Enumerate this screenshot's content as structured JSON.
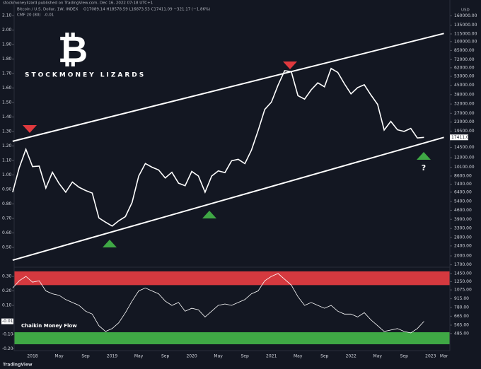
{
  "chart_data": {
    "type": "line",
    "byline": "stockmoneylizard published on TradingView.com, Dec 16, 2022 07:18 UTC+1",
    "ohlc_text": "O17089.14 H18578.59 L16873.53 C17411.09 −321.17 (−1.86%)",
    "brand": "STOCKMONEY LIZARDS",
    "logo": "₿",
    "currency": "USD",
    "annotation": "?",
    "footer": "TradingView",
    "categories": [
      null,
      null,
      null,
      "2018",
      null,
      null,
      null,
      "May",
      null,
      null,
      null,
      "Sep",
      null,
      null,
      null,
      "2019",
      null,
      null,
      null,
      "May",
      null,
      null,
      null,
      "Sep",
      null,
      null,
      null,
      "2020",
      null,
      null,
      null,
      "May",
      null,
      null,
      null,
      "Sep",
      null,
      null,
      null,
      "2021",
      null,
      null,
      null,
      "May",
      null,
      null,
      null,
      "Sep",
      null,
      null,
      null,
      "2022",
      null,
      null,
      null,
      "May",
      null,
      null,
      null,
      "Sep",
      null,
      null,
      null,
      "2023",
      null,
      "Mar"
    ],
    "series": [
      {
        "name": "Bitcoin / U.S. Dollar, 1W, INDEX",
        "color": "#ffffff",
        "axis": "y",
        "last_value": 17411.09,
        "values": [
          6400,
          10000,
          14000,
          10200,
          10300,
          6900,
          9200,
          7500,
          6400,
          7700,
          7000,
          6600,
          6300,
          4000,
          3700,
          3450,
          3800,
          4100,
          5300,
          8600,
          10800,
          10100,
          9600,
          8300,
          9200,
          7550,
          7200,
          9350,
          8600,
          6400,
          8600,
          9450,
          9150,
          11350,
          11650,
          10780,
          13800,
          19700,
          29000,
          33100,
          45200,
          58800,
          57700,
          37300,
          35000,
          41500,
          47100,
          43800,
          61300,
          57000,
          46300,
          38500,
          43200,
          45500,
          37700,
          31800,
          19900,
          23300,
          20000,
          19400,
          20500,
          17200,
          17411,
          null,
          null,
          null
        ]
      },
      {
        "name": "Chaikin Money Flow",
        "legend": "CMF 20 (80)",
        "color": "#ffffff",
        "axis": "y2",
        "last_value": -0.01,
        "values": [
          0.22,
          0.27,
          0.3,
          0.26,
          0.27,
          0.2,
          0.18,
          0.17,
          0.14,
          0.12,
          0.1,
          0.06,
          0.04,
          -0.04,
          -0.08,
          -0.06,
          -0.02,
          0.05,
          0.13,
          0.2,
          0.22,
          0.2,
          0.18,
          0.13,
          0.1,
          0.12,
          0.06,
          0.08,
          0.07,
          0.02,
          0.06,
          0.1,
          0.11,
          0.1,
          0.12,
          0.14,
          0.18,
          0.2,
          0.27,
          0.3,
          0.32,
          0.28,
          0.24,
          0.16,
          0.1,
          0.12,
          0.1,
          0.08,
          0.1,
          0.06,
          0.04,
          0.04,
          0.02,
          0.05,
          0.0,
          -0.04,
          -0.08,
          -0.07,
          -0.06,
          -0.08,
          -0.09,
          -0.06,
          -0.01,
          null,
          null,
          null
        ]
      }
    ],
    "log_scale": true,
    "ylim": [
      355,
      197700
    ],
    "yticks": [
      {
        "value": 160000,
        "label": "160000.00"
      },
      {
        "value": 135000,
        "label": "135000.00"
      },
      {
        "value": 115000,
        "label": "115000.00"
      },
      {
        "value": 100000,
        "label": "100000.00"
      },
      {
        "value": 85000,
        "label": "85000.00"
      },
      {
        "value": 72000,
        "label": "72000.00"
      },
      {
        "value": 62000,
        "label": "62000.00"
      },
      {
        "value": 53000,
        "label": "53000.00"
      },
      {
        "value": 45000,
        "label": "45000.00"
      },
      {
        "value": 38000,
        "label": "38000.00"
      },
      {
        "value": 32000,
        "label": "32000.00"
      },
      {
        "value": 27000,
        "label": "27000.00"
      },
      {
        "value": 23000,
        "label": "23000.00"
      },
      {
        "value": 19500,
        "label": "19500.00"
      },
      {
        "value": 14500,
        "label": "14500.00"
      },
      {
        "value": 12000,
        "label": "12000.00"
      },
      {
        "value": 10100,
        "label": "10100.00"
      },
      {
        "value": 8600,
        "label": "8600.00"
      },
      {
        "value": 7400,
        "label": "7400.00"
      },
      {
        "value": 6400,
        "label": "6400.00"
      },
      {
        "value": 5400,
        "label": "5400.00"
      },
      {
        "value": 4600,
        "label": "4600.00"
      },
      {
        "value": 3900,
        "label": "3900.00"
      },
      {
        "value": 3300,
        "label": "3300.00"
      },
      {
        "value": 2800,
        "label": "2800.00"
      },
      {
        "value": 2400,
        "label": "2400.00"
      },
      {
        "value": 2000,
        "label": "2000.00"
      },
      {
        "value": 1700,
        "label": "1700.00"
      },
      {
        "value": 1450,
        "label": "1450.00"
      },
      {
        "value": 1250,
        "label": "1250.00"
      },
      {
        "value": 1075,
        "label": "1075.00"
      },
      {
        "value": 915,
        "label": "915.00"
      },
      {
        "value": 780,
        "label": "780.00"
      },
      {
        "value": 665,
        "label": "665.00"
      },
      {
        "value": 565,
        "label": "565.00"
      },
      {
        "value": 485,
        "label": "485.00"
      }
    ],
    "y2lim": [
      -0.212,
      2.178
    ],
    "y2ticks": [
      {
        "value": 2.1,
        "label": "2.10"
      },
      {
        "value": 2.0,
        "label": "2.00"
      },
      {
        "value": 1.9,
        "label": "1.90"
      },
      {
        "value": 1.8,
        "label": "1.80"
      },
      {
        "value": 1.7,
        "label": "1.70"
      },
      {
        "value": 1.6,
        "label": "1.60"
      },
      {
        "value": 1.5,
        "label": "1.50"
      },
      {
        "value": 1.4,
        "label": "1.40"
      },
      {
        "value": 1.3,
        "label": "1.30"
      },
      {
        "value": 1.2,
        "label": "1.20"
      },
      {
        "value": 1.1,
        "label": "1.10"
      },
      {
        "value": 1.0,
        "label": "1.00"
      },
      {
        "value": 0.9,
        "label": "0.90"
      },
      {
        "value": 0.8,
        "label": "0.80"
      },
      {
        "value": 0.7,
        "label": "0.70"
      },
      {
        "value": 0.6,
        "label": "0.60"
      },
      {
        "value": 0.5,
        "label": "0.50"
      },
      {
        "value": 0.3,
        "label": "0.30"
      },
      {
        "value": 0.2,
        "label": "0.20"
      },
      {
        "value": 0.1,
        "label": "0.10"
      },
      {
        "value": -0.1,
        "label": "-0.10"
      },
      {
        "value": -0.2,
        "label": "-0.20"
      }
    ],
    "zones": [
      {
        "from": 0.24,
        "to": 0.335,
        "color": "#d5393f"
      },
      {
        "from": -0.168,
        "to": -0.085,
        "color": "#3fa845"
      }
    ],
    "trendlines": [
      {
        "x": [
          0,
          65
        ],
        "y": [
          16200,
          116000
        ]
      },
      {
        "x": [
          0,
          65
        ],
        "y": [
          1850,
          17410
        ]
      }
    ]
  }
}
